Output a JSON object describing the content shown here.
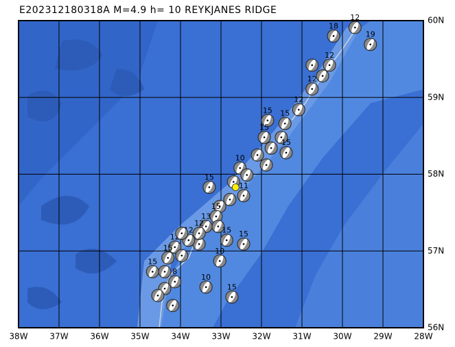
{
  "title": "E202312180318A M=4.9 h= 10 REYKJANES RIDGE",
  "map": {
    "xlim": [
      -38,
      -28
    ],
    "ylim": [
      56,
      60
    ],
    "xticks": [
      {
        "value": -38,
        "label": "38W"
      },
      {
        "value": -37,
        "label": "37W"
      },
      {
        "value": -36,
        "label": "36W"
      },
      {
        "value": -35,
        "label": "35W"
      },
      {
        "value": -34,
        "label": "34W"
      },
      {
        "value": -33,
        "label": "33W"
      },
      {
        "value": -32,
        "label": "32W"
      },
      {
        "value": -31,
        "label": "31W"
      },
      {
        "value": -30,
        "label": "30W"
      },
      {
        "value": -29,
        "label": "29W"
      },
      {
        "value": -28,
        "label": "28W"
      }
    ],
    "yticks": [
      {
        "value": 56,
        "label": "56N"
      },
      {
        "value": 57,
        "label": "57N"
      },
      {
        "value": 58,
        "label": "58N"
      },
      {
        "value": 59,
        "label": "59N"
      },
      {
        "value": 60,
        "label": "60N"
      }
    ],
    "grid": true,
    "epicenter": {
      "lon": -32.64,
      "lat": 57.83,
      "color": "#ffee00"
    },
    "events": [
      {
        "lon": -29.69,
        "lat": 59.91,
        "depth": 12
      },
      {
        "lon": -29.31,
        "lat": 59.69,
        "depth": 19
      },
      {
        "lon": -30.22,
        "lat": 59.8,
        "depth": 18
      },
      {
        "lon": -30.75,
        "lat": 59.42
      },
      {
        "lon": -30.32,
        "lat": 59.42,
        "depth": 12
      },
      {
        "lon": -30.49,
        "lat": 59.28
      },
      {
        "lon": -30.75,
        "lat": 59.11,
        "depth": 12
      },
      {
        "lon": -31.08,
        "lat": 58.84,
        "depth": 12
      },
      {
        "lon": -31.42,
        "lat": 58.66,
        "depth": 15
      },
      {
        "lon": -31.85,
        "lat": 58.7,
        "depth": 15
      },
      {
        "lon": -31.51,
        "lat": 58.48
      },
      {
        "lon": -31.93,
        "lat": 58.48,
        "depth": 15
      },
      {
        "lon": -31.76,
        "lat": 58.34
      },
      {
        "lon": -31.39,
        "lat": 58.28,
        "depth": 15
      },
      {
        "lon": -32.1,
        "lat": 58.25
      },
      {
        "lon": -31.88,
        "lat": 58.12
      },
      {
        "lon": -32.53,
        "lat": 58.08,
        "depth": 10
      },
      {
        "lon": -32.36,
        "lat": 57.99
      },
      {
        "lon": -32.69,
        "lat": 57.9
      },
      {
        "lon": -33.29,
        "lat": 57.83,
        "depth": 15
      },
      {
        "lon": -32.44,
        "lat": 57.72,
        "depth": 11
      },
      {
        "lon": -32.78,
        "lat": 57.67
      },
      {
        "lon": -33.03,
        "lat": 57.58
      },
      {
        "lon": -33.12,
        "lat": 57.45,
        "depth": 15
      },
      {
        "lon": -33.07,
        "lat": 57.32
      },
      {
        "lon": -33.37,
        "lat": 57.32,
        "depth": 13
      },
      {
        "lon": -33.54,
        "lat": 57.09
      },
      {
        "lon": -33.8,
        "lat": 57.14,
        "depth": 12
      },
      {
        "lon": -34.14,
        "lat": 57.05,
        "depth": 12
      },
      {
        "lon": -33.97,
        "lat": 56.94
      },
      {
        "lon": -32.86,
        "lat": 57.14,
        "depth": 15
      },
      {
        "lon": -32.44,
        "lat": 57.09,
        "depth": 15
      },
      {
        "lon": -33.03,
        "lat": 56.87,
        "depth": 10
      },
      {
        "lon": -34.31,
        "lat": 56.91,
        "depth": 15
      },
      {
        "lon": -34.39,
        "lat": 56.73
      },
      {
        "lon": -34.69,
        "lat": 56.73,
        "depth": 15
      },
      {
        "lon": -34.14,
        "lat": 56.6,
        "depth": 8
      },
      {
        "lon": -34.39,
        "lat": 56.51
      },
      {
        "lon": -34.56,
        "lat": 56.42
      },
      {
        "lon": -34.19,
        "lat": 56.29
      },
      {
        "lon": -33.37,
        "lat": 56.53,
        "depth": 10
      },
      {
        "lon": -32.73,
        "lat": 56.4,
        "depth": 15
      },
      {
        "lon": -33.97,
        "lat": 57.23
      },
      {
        "lon": -33.54,
        "lat": 57.23,
        "depth": 12
      }
    ]
  }
}
